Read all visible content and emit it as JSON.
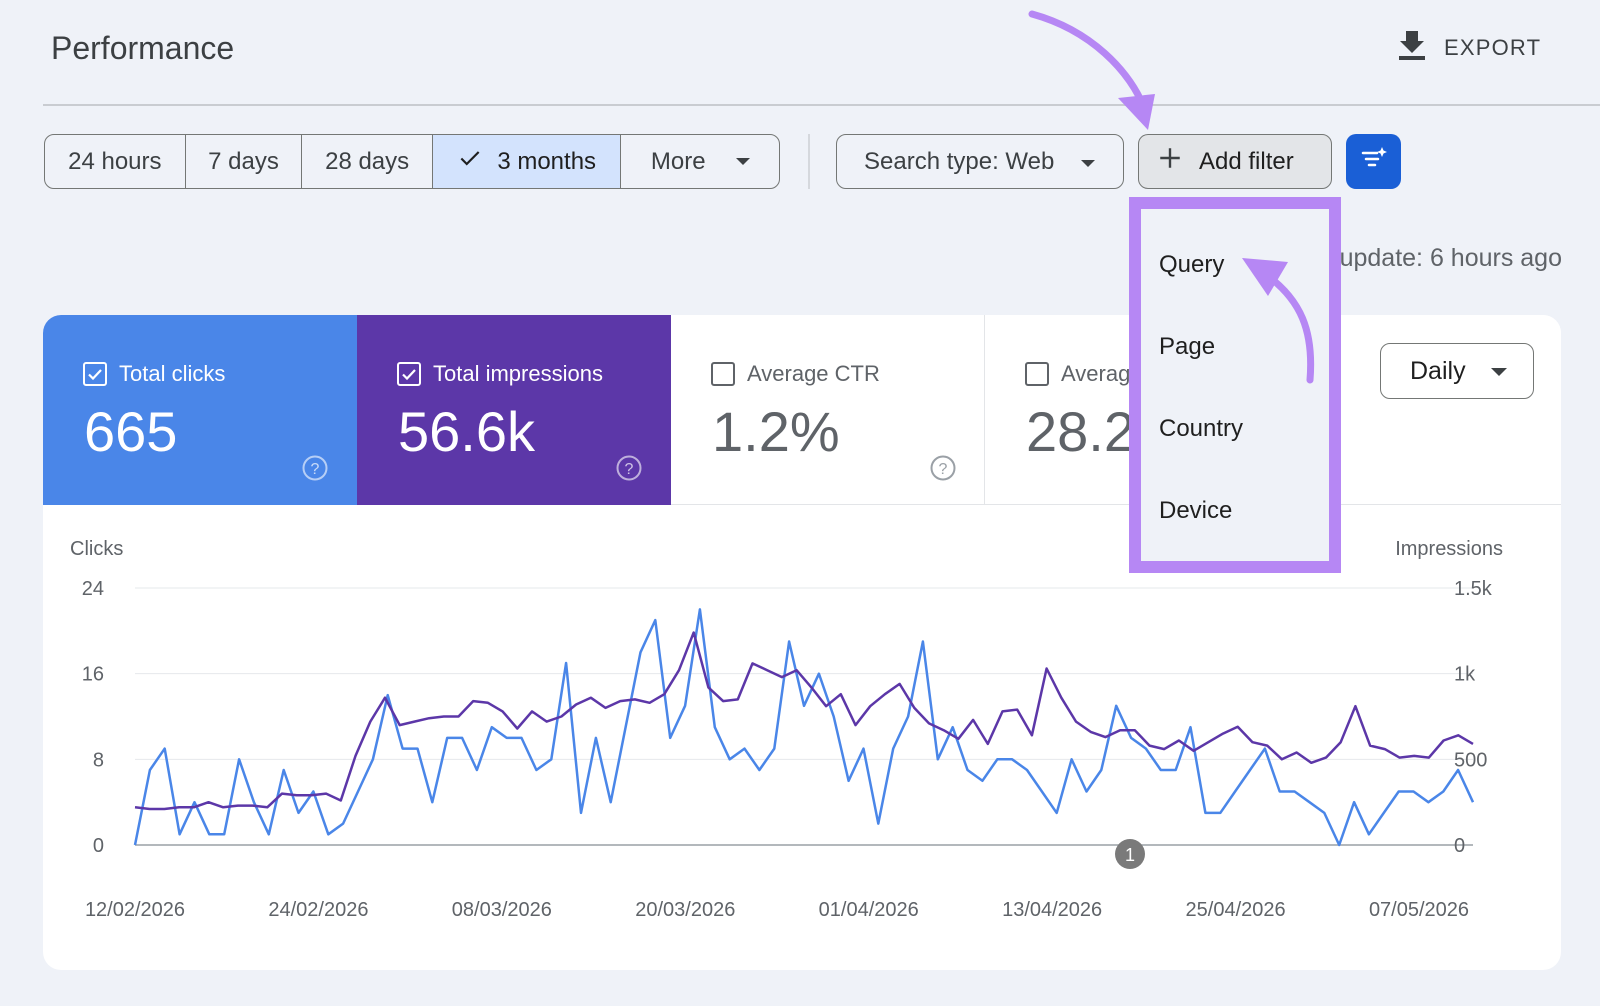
{
  "header": {
    "title": "Performance",
    "export_label": "EXPORT"
  },
  "date_range": {
    "options": [
      "24 hours",
      "7 days",
      "28 days",
      "3 months"
    ],
    "selected": "3 months",
    "more_label": "More"
  },
  "search_type": {
    "label": "Search type: Web"
  },
  "add_filter": {
    "label": "Add filter"
  },
  "last_update": "update: 6 hours ago",
  "filter_menu": {
    "items": [
      "Query",
      "Page",
      "Country",
      "Device"
    ]
  },
  "metrics": {
    "clicks": {
      "label": "Total clicks",
      "value": "665",
      "checked": true
    },
    "impressions": {
      "label": "Total impressions",
      "value": "56.6k",
      "checked": true
    },
    "ctr": {
      "label": "Average CTR",
      "value": "1.2%",
      "checked": false
    },
    "position": {
      "label": "Averag",
      "value": "28.2",
      "checked": false
    }
  },
  "granularity": {
    "label": "Daily"
  },
  "colors": {
    "clicks": "#4a86e8",
    "impressions": "#5c37a8",
    "annotation_arrow": "#b687f4"
  },
  "chart_data": {
    "type": "line",
    "ylabel_left": "Clicks",
    "ylabel_right": "Impressions",
    "y_left_ticks": [
      "0",
      "8",
      "16",
      "24"
    ],
    "y_right_ticks": [
      "0",
      "500",
      "1k",
      "1.5k"
    ],
    "ylim_left": [
      0,
      24
    ],
    "ylim_right": [
      0,
      1500
    ],
    "x_tick_labels": [
      "12/02/2026",
      "24/02/2026",
      "08/03/2026",
      "20/03/2026",
      "01/04/2026",
      "13/04/2026",
      "25/04/2026",
      "07/05/2026"
    ],
    "annotation_marker": "1",
    "series": [
      {
        "name": "Clicks",
        "axis": "left",
        "color": "#4a86e8",
        "values": [
          0,
          7,
          9,
          1,
          4,
          1,
          1,
          8,
          4,
          1,
          7,
          3,
          5,
          1,
          2,
          5,
          8,
          14,
          9,
          9,
          4,
          10,
          10,
          7,
          11,
          10,
          10,
          7,
          8,
          17,
          3,
          10,
          4,
          11,
          18,
          21,
          10,
          13,
          22,
          11,
          8,
          9,
          7,
          9,
          19,
          13,
          16,
          12,
          6,
          9,
          2,
          9,
          12,
          19,
          8,
          11,
          7,
          6,
          8,
          8,
          7,
          5,
          3,
          8,
          5,
          7,
          13,
          10,
          9,
          7,
          7,
          11,
          3,
          3,
          5,
          7,
          9,
          5,
          5,
          4,
          3,
          0,
          4,
          1,
          3,
          5,
          5,
          4,
          5,
          7,
          4
        ]
      },
      {
        "name": "Impressions",
        "axis": "right",
        "color": "#5c37a8",
        "values": [
          220,
          210,
          210,
          220,
          220,
          250,
          220,
          230,
          230,
          220,
          300,
          290,
          290,
          300,
          260,
          520,
          720,
          860,
          700,
          720,
          740,
          750,
          750,
          840,
          830,
          780,
          680,
          780,
          720,
          750,
          820,
          860,
          800,
          840,
          850,
          830,
          880,
          1020,
          1240,
          920,
          840,
          850,
          1060,
          1020,
          980,
          1020,
          920,
          810,
          880,
          700,
          810,
          880,
          940,
          800,
          710,
          670,
          620,
          730,
          590,
          780,
          790,
          640,
          1030,
          860,
          720,
          660,
          630,
          670,
          670,
          580,
          560,
          610,
          550,
          600,
          650,
          690,
          600,
          580,
          500,
          540,
          480,
          510,
          600,
          810,
          580,
          560,
          510,
          520,
          510,
          610,
          640,
          590
        ]
      }
    ]
  }
}
